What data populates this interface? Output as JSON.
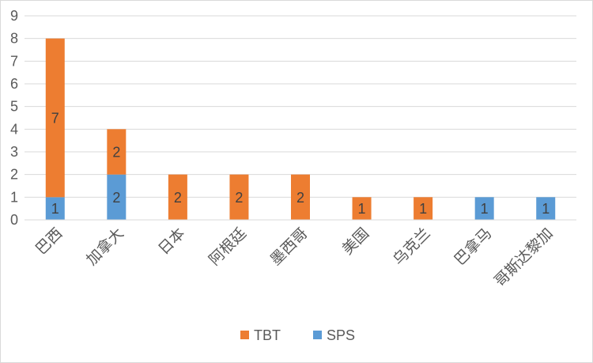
{
  "chart_data": {
    "type": "bar",
    "stacked": true,
    "title": "",
    "xlabel": "",
    "ylabel": "",
    "ylim": [
      0,
      9
    ],
    "yticks": [
      "0",
      "1",
      "2",
      "3",
      "4",
      "5",
      "6",
      "7",
      "8",
      "9"
    ],
    "grid": true,
    "legend_position": "bottom",
    "categories": [
      "巴西",
      "加拿大",
      "日本",
      "阿根廷",
      "墨西哥",
      "美国",
      "乌克兰",
      "巴拿马",
      "哥斯达黎加"
    ],
    "series": [
      {
        "name": "SPS",
        "color": "#5b9bd5",
        "values": [
          1,
          2,
          0,
          0,
          0,
          0,
          0,
          1,
          1
        ]
      },
      {
        "name": "TBT",
        "color": "#ed7d31",
        "values": [
          7,
          2,
          2,
          2,
          2,
          1,
          1,
          0,
          0
        ]
      }
    ],
    "legend_order": [
      "TBT",
      "SPS"
    ]
  }
}
